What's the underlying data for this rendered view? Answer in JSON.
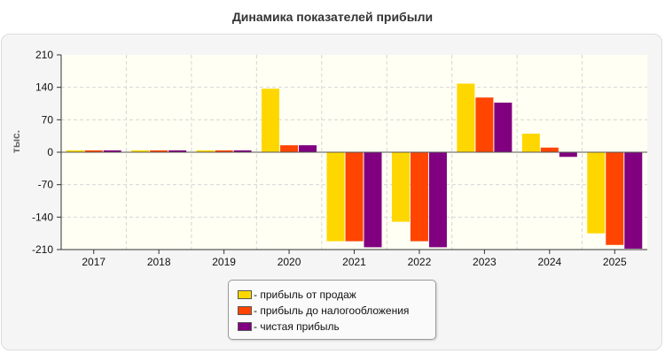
{
  "chart_data": {
    "type": "bar",
    "title": "Динамика показателей прибыли",
    "ylabel": "тыс.",
    "xlabel": "",
    "categories": [
      "2017",
      "2018",
      "2019",
      "2020",
      "2021",
      "2022",
      "2023",
      "2024",
      "2025"
    ],
    "ylim": [
      -210,
      210
    ],
    "yticks": [
      "210",
      "140",
      "70",
      "0",
      "-70",
      "-140",
      "-210"
    ],
    "grid": true,
    "legend_position": "bottom-center",
    "series": [
      {
        "name": "- прибыль от продаж",
        "color": "#ffd700",
        "values": [
          4,
          4,
          4,
          137,
          -192,
          -150,
          148,
          40,
          -175
        ]
      },
      {
        "name": "- прибыль до налогообложения",
        "color": "#ff4500",
        "values": [
          4,
          4,
          4,
          15,
          -192,
          -192,
          118,
          10,
          -200
        ]
      },
      {
        "name": "- чистая прибыль",
        "color": "#800080",
        "values": [
          4,
          4,
          4,
          15,
          -205,
          -205,
          107,
          -10,
          -208
        ]
      }
    ]
  }
}
